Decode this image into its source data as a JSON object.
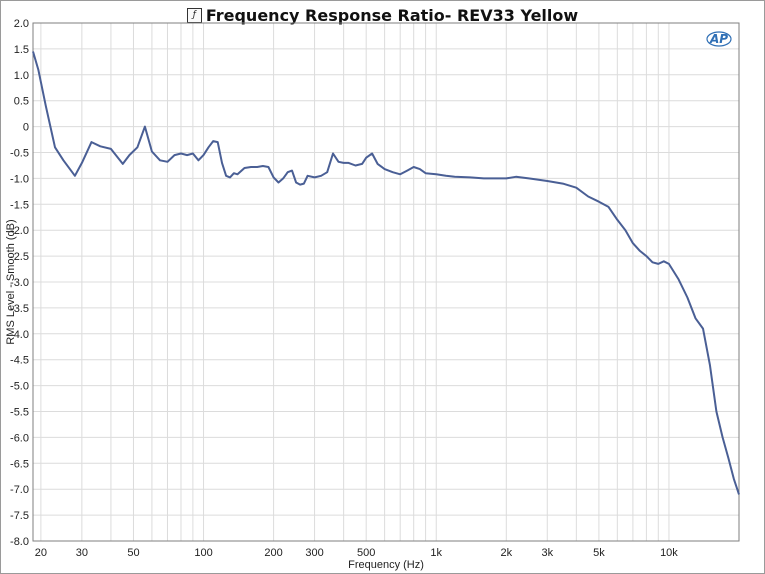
{
  "header": {
    "title": "Frequency Response Ratio- REV33 Yellow"
  },
  "logo": {
    "text": "AP"
  },
  "chart_data": {
    "type": "line",
    "title": "Frequency Response Ratio- REV33 Yellow",
    "xlabel": "Frequency (Hz)",
    "ylabel": "RMS Level - Smooth (dB)",
    "xscale": "log",
    "xlim": [
      18.5,
      20000
    ],
    "ylim": [
      -8.0,
      2.0
    ],
    "grid": true,
    "xticks": [
      20,
      30,
      50,
      100,
      200,
      300,
      500,
      1000,
      2000,
      3000,
      5000,
      10000
    ],
    "xtick_labels": [
      "20",
      "30",
      "50",
      "100",
      "200",
      "300",
      "500",
      "1k",
      "2k",
      "3k",
      "5k",
      "10k"
    ],
    "yticks": [
      2.0,
      1.5,
      1.0,
      0.5,
      0,
      -0.5,
      -1.0,
      -1.5,
      -2.0,
      -2.5,
      -3.0,
      -3.5,
      -4.0,
      -4.5,
      -5.0,
      -5.5,
      -6.0,
      -6.5,
      -7.0,
      -7.5,
      -8.0
    ],
    "ytick_labels": [
      "2.0",
      "1.5",
      "1.0",
      "0.5",
      "0",
      "-0.5",
      "-1.0",
      "-1.5",
      "-2.0",
      "-2.5",
      "-3.0",
      "-3.5",
      "-4.0",
      "-4.5",
      "-5.0",
      "-5.5",
      "-6.0",
      "-6.5",
      "-7.0",
      "-7.5",
      "-8.0"
    ],
    "series": [
      {
        "color": "#4a5f95",
        "x": [
          18.5,
          19.5,
          21,
          23,
          25,
          28,
          30,
          33,
          36,
          40,
          45,
          48,
          52,
          56,
          60,
          65,
          70,
          75,
          80,
          85,
          90,
          95,
          100,
          105,
          110,
          115,
          120,
          125,
          130,
          135,
          140,
          150,
          160,
          170,
          180,
          190,
          200,
          210,
          220,
          230,
          240,
          250,
          260,
          270,
          280,
          300,
          320,
          340,
          360,
          380,
          400,
          420,
          450,
          480,
          500,
          530,
          560,
          600,
          650,
          700,
          750,
          800,
          850,
          900,
          1000,
          1100,
          1200,
          1400,
          1600,
          1800,
          2000,
          2200,
          2500,
          2800,
          3000,
          3500,
          4000,
          4500,
          5000,
          5500,
          6000,
          6500,
          7000,
          7500,
          8000,
          8500,
          9000,
          9500,
          10000,
          11000,
          12000,
          13000,
          14000,
          15000,
          16000,
          17000,
          18000,
          19000,
          20000
        ],
        "y": [
          1.45,
          1.1,
          0.4,
          -0.4,
          -0.65,
          -0.95,
          -0.7,
          -0.3,
          -0.38,
          -0.43,
          -0.72,
          -0.55,
          -0.4,
          0,
          -0.48,
          -0.65,
          -0.68,
          -0.55,
          -0.52,
          -0.55,
          -0.52,
          -0.65,
          -0.55,
          -0.4,
          -0.28,
          -0.3,
          -0.7,
          -0.95,
          -0.98,
          -0.9,
          -0.92,
          -0.8,
          -0.78,
          -0.78,
          -0.76,
          -0.78,
          -0.98,
          -1.08,
          -1.0,
          -0.88,
          -0.85,
          -1.08,
          -1.12,
          -1.1,
          -0.95,
          -0.98,
          -0.95,
          -0.88,
          -0.52,
          -0.68,
          -0.7,
          -0.7,
          -0.75,
          -0.72,
          -0.6,
          -0.52,
          -0.72,
          -0.82,
          -0.88,
          -0.92,
          -0.85,
          -0.78,
          -0.82,
          -0.9,
          -0.92,
          -0.95,
          -0.97,
          -0.98,
          -1.0,
          -1.0,
          -1.0,
          -0.97,
          -1.0,
          -1.03,
          -1.05,
          -1.1,
          -1.18,
          -1.35,
          -1.45,
          -1.55,
          -1.8,
          -2.0,
          -2.25,
          -2.4,
          -2.5,
          -2.62,
          -2.65,
          -2.6,
          -2.65,
          -2.95,
          -3.3,
          -3.7,
          -3.9,
          -4.6,
          -5.5,
          -6.0,
          -6.4,
          -6.8,
          -7.1
        ]
      }
    ]
  }
}
